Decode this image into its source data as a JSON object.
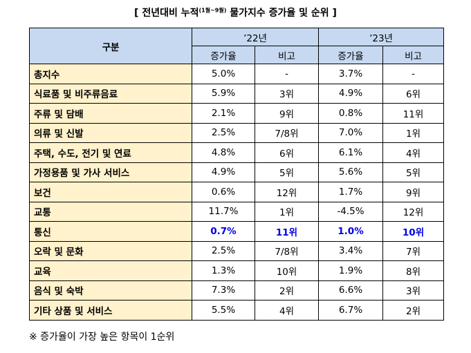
{
  "title": {
    "prefix": "[ 전년대비 누적",
    "sup": "(1월~9월)",
    "suffix": " 물가지수 증가율 및 순위 ]"
  },
  "table": {
    "header": {
      "category": "구분",
      "year1": "’22년",
      "year2": "’23년",
      "sub": [
        "증가율",
        "비고",
        "증가율",
        "비고"
      ]
    },
    "rows": [
      [
        "총지수",
        "5.0%",
        "-",
        "3.7%",
        "-"
      ],
      [
        "식료품 및 비주류음료",
        "5.9%",
        "3위",
        "4.9%",
        "6위"
      ],
      [
        "주류 및 담배",
        "2.1%",
        "9위",
        "0.8%",
        "11위"
      ],
      [
        "의류 및 신발",
        "2.5%",
        "7/8위",
        "7.0%",
        "1위"
      ],
      [
        "주택, 수도, 전기 및 연료",
        "4.8%",
        "6위",
        "6.1%",
        "4위"
      ],
      [
        "가정용품 및 가사 서비스",
        "4.9%",
        "5위",
        "5.6%",
        "5위"
      ],
      [
        "보건",
        "0.6%",
        "12위",
        "1.7%",
        "9위"
      ],
      [
        "교통",
        "11.7%",
        "1위",
        "-4.5%",
        "12위"
      ],
      [
        "통신",
        "0.7%",
        "11위",
        "1.0%",
        "10위"
      ],
      [
        "오락 및 문화",
        "2.5%",
        "7/8위",
        "3.4%",
        "7위"
      ],
      [
        "교육",
        "1.3%",
        "10위",
        "1.9%",
        "8위"
      ],
      [
        "음식 및 숙박",
        "7.3%",
        "2위",
        "6.6%",
        "3위"
      ],
      [
        "기타 상품 및 서비스",
        "5.5%",
        "4위",
        "6.7%",
        "2위"
      ]
    ]
  },
  "footnote": "※ 증가율이 가장 높은 항목이 1순위"
}
